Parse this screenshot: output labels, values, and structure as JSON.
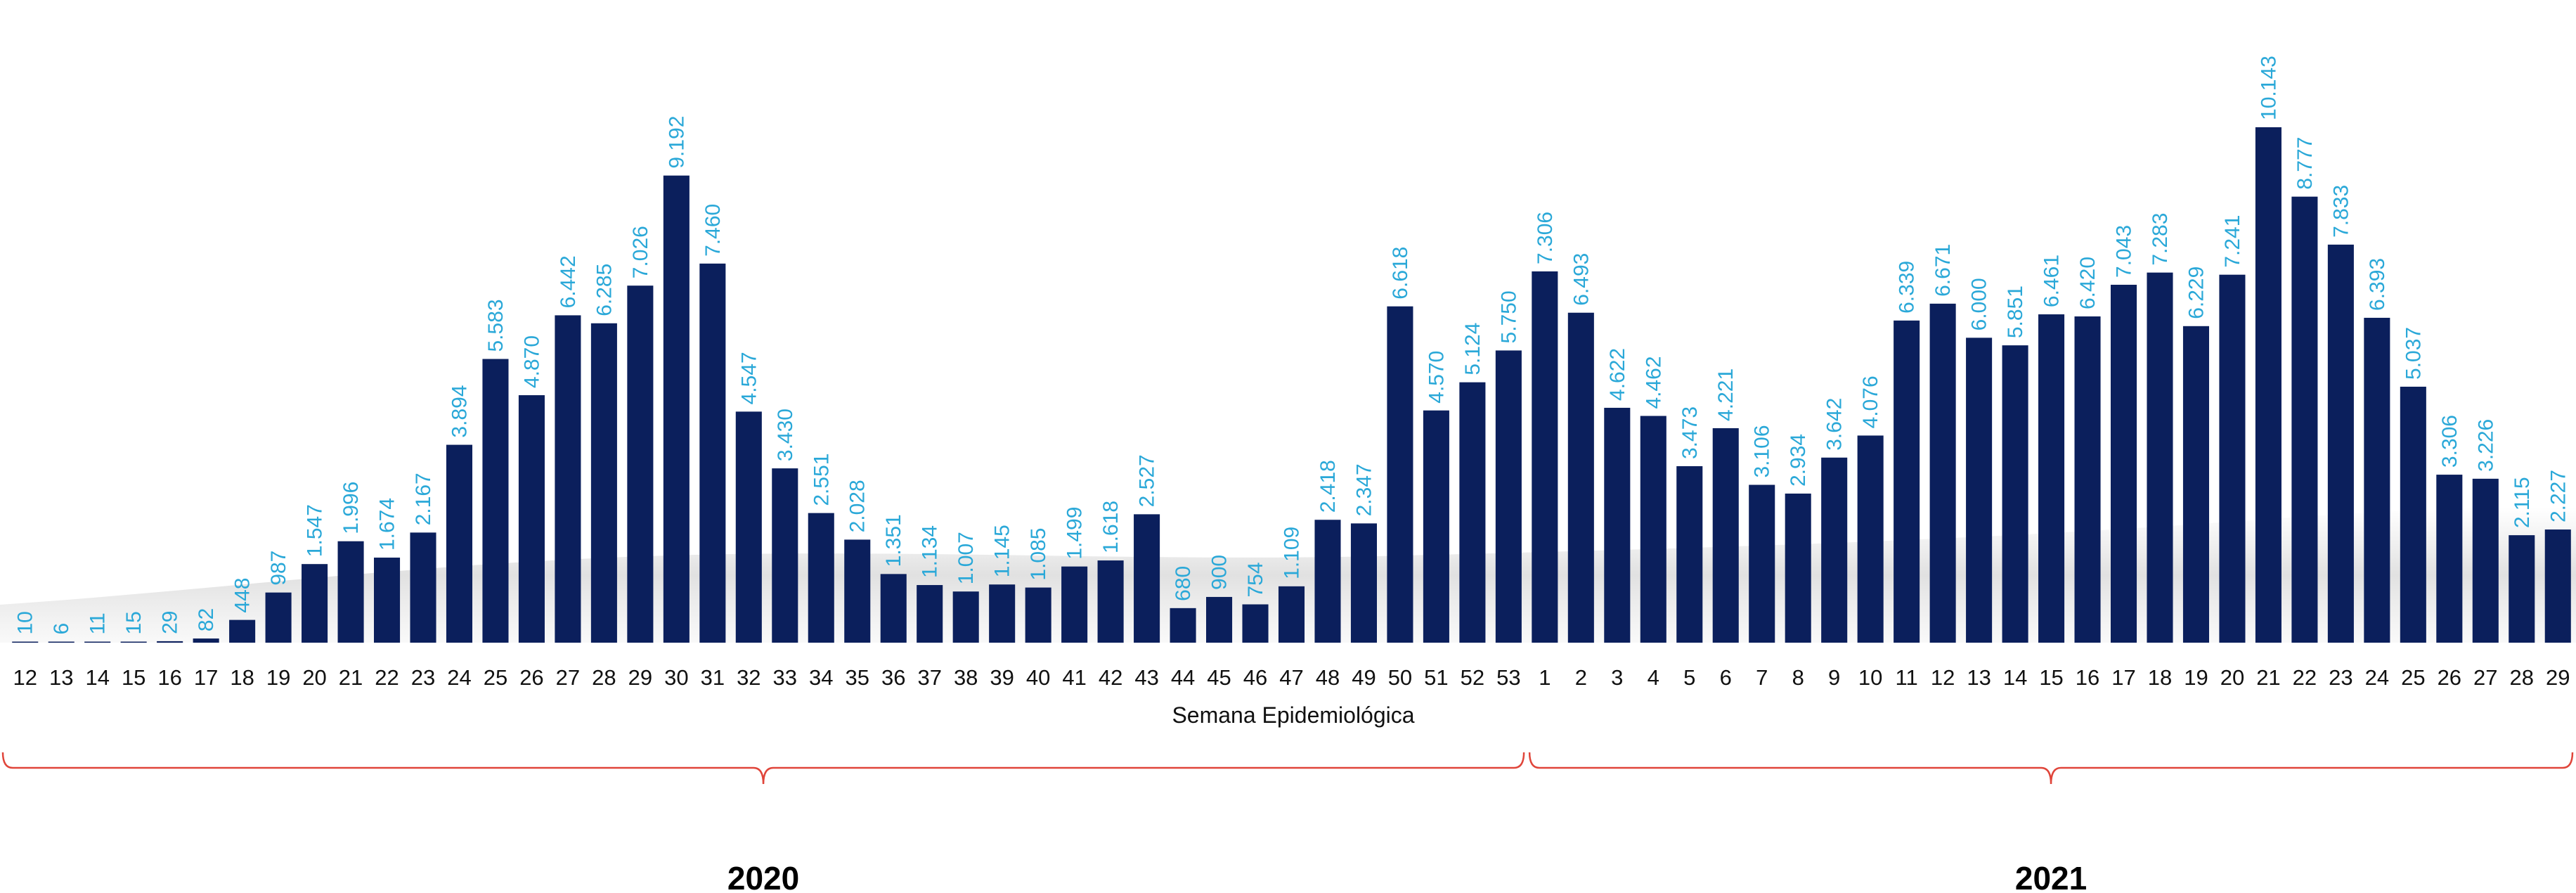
{
  "chart_data": {
    "type": "bar",
    "title": "",
    "xlabel": "Semana Epidemiológica",
    "ylabel": "",
    "ylim": [
      0,
      11000
    ],
    "grid": false,
    "colors": {
      "bar": "#0b1f5c",
      "value_label": "#2aa8d8",
      "brace": "#e0453a"
    },
    "categories": [
      "12",
      "13",
      "14",
      "15",
      "16",
      "17",
      "18",
      "19",
      "20",
      "21",
      "22",
      "23",
      "24",
      "25",
      "26",
      "27",
      "28",
      "29",
      "30",
      "31",
      "32",
      "33",
      "34",
      "35",
      "36",
      "37",
      "38",
      "39",
      "40",
      "41",
      "42",
      "43",
      "44",
      "45",
      "46",
      "47",
      "48",
      "49",
      "50",
      "51",
      "52",
      "53",
      "1",
      "2",
      "3",
      "4",
      "5",
      "6",
      "7",
      "8",
      "9",
      "10",
      "11",
      "12",
      "13",
      "14",
      "15",
      "16",
      "17",
      "18",
      "19",
      "20",
      "21",
      "22",
      "23",
      "24",
      "25",
      "26",
      "27",
      "28",
      "29"
    ],
    "values": [
      10,
      6,
      11,
      15,
      29,
      82,
      448,
      987,
      1547,
      1996,
      1674,
      2167,
      3894,
      5583,
      4870,
      6442,
      6285,
      7026,
      9192,
      7460,
      4547,
      3430,
      2551,
      2028,
      1351,
      1134,
      1007,
      1145,
      1085,
      1499,
      1618,
      2527,
      680,
      900,
      754,
      1109,
      2418,
      2347,
      6618,
      4570,
      5124,
      5750,
      7306,
      6493,
      4622,
      4462,
      3473,
      4221,
      3106,
      2934,
      3642,
      4076,
      6339,
      6671,
      6000,
      5851,
      6461,
      6420,
      7043,
      7283,
      6229,
      7241,
      10143,
      8777,
      7833,
      6393,
      5037,
      3306,
      3226,
      2115,
      2227
    ],
    "data_labels": [
      "10",
      "6",
      "11",
      "15",
      "29",
      "82",
      "448",
      "987",
      "1.547",
      "1.996",
      "1.674",
      "2.167",
      "3.894",
      "5.583",
      "4.870",
      "6.442",
      "6.285",
      "7.026",
      "9.192",
      "7.460",
      "4.547",
      "3.430",
      "2.551",
      "2.028",
      "1.351",
      "1.134",
      "1.007",
      "1.145",
      "1.085",
      "1.499",
      "1.618",
      "2.527",
      "680",
      "900",
      "754",
      "1.109",
      "2.418",
      "2.347",
      "6.618",
      "4.570",
      "5.124",
      "5.750",
      "7.306",
      "6.493",
      "4.622",
      "4.462",
      "3.473",
      "4.221",
      "3.106",
      "2.934",
      "3.642",
      "4.076",
      "6.339",
      "6.671",
      "6.000",
      "5.851",
      "6.461",
      "6.420",
      "7.043",
      "7.283",
      "6.229",
      "7.241",
      "10.143",
      "8.777",
      "7.833",
      "6.393",
      "5.037",
      "3.306",
      "3.226",
      "2.115",
      "2.227"
    ],
    "groups": [
      {
        "label": "2020",
        "first_index": 0,
        "last_index": 41
      },
      {
        "label": "2021",
        "first_index": 42,
        "last_index": 70
      }
    ]
  }
}
